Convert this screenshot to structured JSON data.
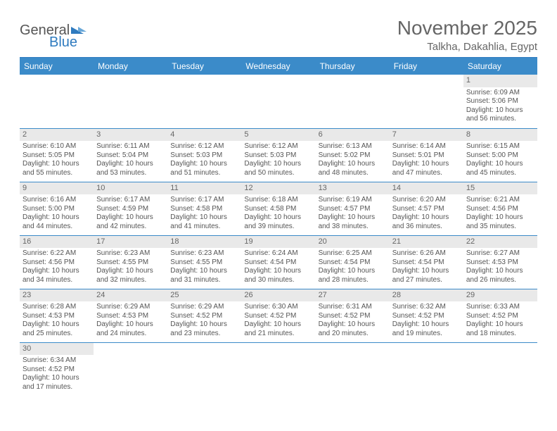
{
  "logo": {
    "text1": "General",
    "text2": "Blue"
  },
  "title": "November 2025",
  "subtitle": "Talkha, Dakahlia, Egypt",
  "colors": {
    "header_bg": "#3b8bc9",
    "header_text": "#ffffff",
    "rule": "#2f7bbf",
    "daybar": "#e9e9e9",
    "text": "#555555"
  },
  "weekdays": [
    "Sunday",
    "Monday",
    "Tuesday",
    "Wednesday",
    "Thursday",
    "Friday",
    "Saturday"
  ],
  "first_weekday_index": 6,
  "days": [
    {
      "n": 1,
      "sunrise": "6:09 AM",
      "sunset": "5:06 PM",
      "daylight": "10 hours and 56 minutes."
    },
    {
      "n": 2,
      "sunrise": "6:10 AM",
      "sunset": "5:05 PM",
      "daylight": "10 hours and 55 minutes."
    },
    {
      "n": 3,
      "sunrise": "6:11 AM",
      "sunset": "5:04 PM",
      "daylight": "10 hours and 53 minutes."
    },
    {
      "n": 4,
      "sunrise": "6:12 AM",
      "sunset": "5:03 PM",
      "daylight": "10 hours and 51 minutes."
    },
    {
      "n": 5,
      "sunrise": "6:12 AM",
      "sunset": "5:03 PM",
      "daylight": "10 hours and 50 minutes."
    },
    {
      "n": 6,
      "sunrise": "6:13 AM",
      "sunset": "5:02 PM",
      "daylight": "10 hours and 48 minutes."
    },
    {
      "n": 7,
      "sunrise": "6:14 AM",
      "sunset": "5:01 PM",
      "daylight": "10 hours and 47 minutes."
    },
    {
      "n": 8,
      "sunrise": "6:15 AM",
      "sunset": "5:00 PM",
      "daylight": "10 hours and 45 minutes."
    },
    {
      "n": 9,
      "sunrise": "6:16 AM",
      "sunset": "5:00 PM",
      "daylight": "10 hours and 44 minutes."
    },
    {
      "n": 10,
      "sunrise": "6:17 AM",
      "sunset": "4:59 PM",
      "daylight": "10 hours and 42 minutes."
    },
    {
      "n": 11,
      "sunrise": "6:17 AM",
      "sunset": "4:58 PM",
      "daylight": "10 hours and 41 minutes."
    },
    {
      "n": 12,
      "sunrise": "6:18 AM",
      "sunset": "4:58 PM",
      "daylight": "10 hours and 39 minutes."
    },
    {
      "n": 13,
      "sunrise": "6:19 AM",
      "sunset": "4:57 PM",
      "daylight": "10 hours and 38 minutes."
    },
    {
      "n": 14,
      "sunrise": "6:20 AM",
      "sunset": "4:57 PM",
      "daylight": "10 hours and 36 minutes."
    },
    {
      "n": 15,
      "sunrise": "6:21 AM",
      "sunset": "4:56 PM",
      "daylight": "10 hours and 35 minutes."
    },
    {
      "n": 16,
      "sunrise": "6:22 AM",
      "sunset": "4:56 PM",
      "daylight": "10 hours and 34 minutes."
    },
    {
      "n": 17,
      "sunrise": "6:23 AM",
      "sunset": "4:55 PM",
      "daylight": "10 hours and 32 minutes."
    },
    {
      "n": 18,
      "sunrise": "6:23 AM",
      "sunset": "4:55 PM",
      "daylight": "10 hours and 31 minutes."
    },
    {
      "n": 19,
      "sunrise": "6:24 AM",
      "sunset": "4:54 PM",
      "daylight": "10 hours and 30 minutes."
    },
    {
      "n": 20,
      "sunrise": "6:25 AM",
      "sunset": "4:54 PM",
      "daylight": "10 hours and 28 minutes."
    },
    {
      "n": 21,
      "sunrise": "6:26 AM",
      "sunset": "4:54 PM",
      "daylight": "10 hours and 27 minutes."
    },
    {
      "n": 22,
      "sunrise": "6:27 AM",
      "sunset": "4:53 PM",
      "daylight": "10 hours and 26 minutes."
    },
    {
      "n": 23,
      "sunrise": "6:28 AM",
      "sunset": "4:53 PM",
      "daylight": "10 hours and 25 minutes."
    },
    {
      "n": 24,
      "sunrise": "6:29 AM",
      "sunset": "4:53 PM",
      "daylight": "10 hours and 24 minutes."
    },
    {
      "n": 25,
      "sunrise": "6:29 AM",
      "sunset": "4:52 PM",
      "daylight": "10 hours and 23 minutes."
    },
    {
      "n": 26,
      "sunrise": "6:30 AM",
      "sunset": "4:52 PM",
      "daylight": "10 hours and 21 minutes."
    },
    {
      "n": 27,
      "sunrise": "6:31 AM",
      "sunset": "4:52 PM",
      "daylight": "10 hours and 20 minutes."
    },
    {
      "n": 28,
      "sunrise": "6:32 AM",
      "sunset": "4:52 PM",
      "daylight": "10 hours and 19 minutes."
    },
    {
      "n": 29,
      "sunrise": "6:33 AM",
      "sunset": "4:52 PM",
      "daylight": "10 hours and 18 minutes."
    },
    {
      "n": 30,
      "sunrise": "6:34 AM",
      "sunset": "4:52 PM",
      "daylight": "10 hours and 17 minutes."
    }
  ],
  "labels": {
    "sunrise": "Sunrise:",
    "sunset": "Sunset:",
    "daylight": "Daylight:"
  }
}
